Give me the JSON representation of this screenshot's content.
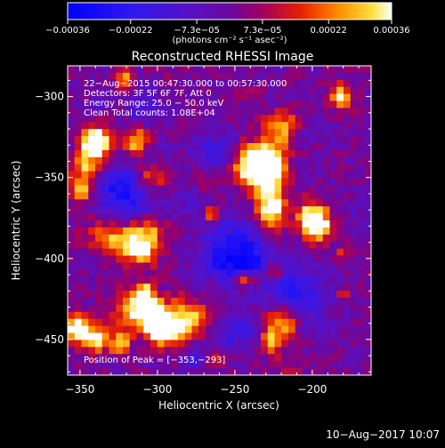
{
  "chart_data": {
    "type": "heatmap",
    "title": "Reconstructed RHESSI Image",
    "xlabel": "Heliocentric X (arcsec)",
    "ylabel": "Heliocentric Y (arcsec)",
    "xlim": [
      -358,
      -162
    ],
    "ylim": [
      -472,
      -281
    ],
    "x_ticks": [
      -350,
      -300,
      -250,
      -200
    ],
    "y_ticks": [
      -300,
      -350,
      -400,
      -450
    ],
    "x_tick_labels": [
      "−350",
      "−300",
      "−250",
      "−200"
    ],
    "y_tick_labels": [
      "−300",
      "−350",
      "−400",
      "−450"
    ],
    "colorbar": {
      "label": "(photons cm⁻² s⁻¹ asec⁻²)",
      "range": [
        -0.00036,
        0.00036
      ],
      "tick_labels": [
        "−0.00036",
        "−0.00022",
        "−7.3e−05",
        "7.3e−05",
        "0.00022",
        "0.00036"
      ],
      "tick_values": [
        -0.00036,
        -0.00022,
        -7.3e-05,
        7.3e-05,
        0.00022,
        0.00036
      ]
    },
    "annotations": [
      "22−Aug−2015 00:47:30.000 to 00:57:30.000",
      "Detectors: 3F 5F 6F 7F, Att 0",
      "Energy Range: 25.0 − 50.0 keV",
      "Clean    Total counts: 1.08E+04"
    ],
    "peak_label": "Position of Peak = [−353,−293]",
    "peak_position": [
      -353,
      -293
    ],
    "colors": {
      "neg_low": "#0000ff",
      "mid": "#7000a0",
      "pos_high": "#ffffff"
    }
  },
  "footer": {
    "timestamp": "10−Aug−2017 10:07"
  }
}
